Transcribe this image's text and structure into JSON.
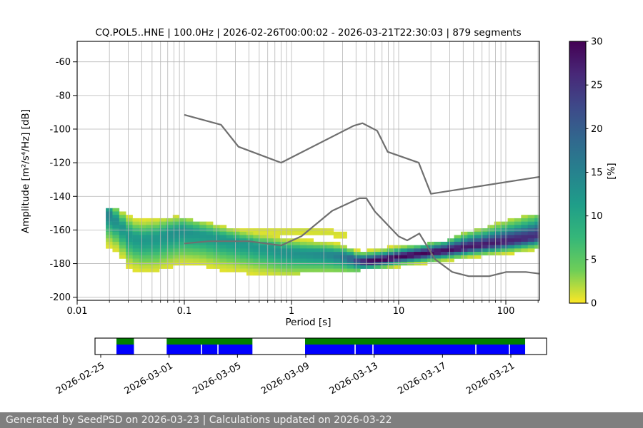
{
  "title": "CQ.POL5..HNE | 100.0Hz | 2026-02-26T00:00:02 - 2026-03-21T22:30:03 | 879 segments",
  "footer": "Generated by SeedPSD on 2026-03-23 | Calculations updated on 2026-03-22",
  "axes": {
    "xlabel": "Period [s]",
    "ylabel": "Amplitude [m²/s⁴/Hz] [dB]",
    "x_tick_values": [
      0.01,
      0.1,
      1,
      10,
      100
    ],
    "x_tick_labels": [
      "0.01",
      "0.1",
      "1",
      "10",
      "100"
    ],
    "y_tick_values": [
      -60,
      -80,
      -100,
      -120,
      -140,
      -160,
      -180,
      -200
    ],
    "xlim": [
      0.01,
      206
    ],
    "ylim": [
      -202,
      -48
    ],
    "grid": true
  },
  "colorbar": {
    "label": "[%]",
    "ticks": [
      0,
      5,
      10,
      15,
      20,
      25,
      30
    ],
    "vmax": 30,
    "viridis_stops": [
      "#440154",
      "#482878",
      "#3e4989",
      "#31688e",
      "#26828e",
      "#1f9e89",
      "#35b779",
      "#6ece58",
      "#fde725"
    ]
  },
  "chart_data": {
    "type": "heatmap",
    "description": "PPSD probability histogram: percentage of 879 PSD segments falling in each (period, amplitude-dB) cell. Columns are log-spaced period bins; each column approximated by mode/spread/peak-percent plus envelope and optional faint upper wisp band.",
    "bins_per_decade": 16,
    "period_start": 0.0185,
    "period_end": 205,
    "db_cell": 2,
    "percent_cutoff": 0.7,
    "columns_spec_fields": "p=period[s], m=mode dB, sd=sigma below mode, su=sigma above mode, pk=peak %, top/bot=dB envelope, wp=wisp peak %, wo=wisp offset dB above mode",
    "columns_spec": [
      {
        "p": 0.018,
        "m": -150.0,
        "sd": 8.0,
        "su": 3.5,
        "pk": 15,
        "top": -146.0,
        "bot": -172.0,
        "wp": 0,
        "wo": 0
      },
      {
        "p": 0.022,
        "m": -155.0,
        "sd": 7.5,
        "su": 4.0,
        "pk": 13,
        "top": -147.0,
        "bot": -177.0,
        "wp": 0,
        "wo": 0
      },
      {
        "p": 0.028,
        "m": -163.0,
        "sd": 8.0,
        "su": 5.0,
        "pk": 12,
        "top": -151.0,
        "bot": -184.0,
        "wp": 0,
        "wo": 0
      },
      {
        "p": 0.035,
        "m": -166.0,
        "sd": 8.0,
        "su": 5.0,
        "pk": 12,
        "top": -153.0,
        "bot": -186.0,
        "wp": 0,
        "wo": 0
      },
      {
        "p": 0.05,
        "m": -165.0,
        "sd": 8.5,
        "su": 5.0,
        "pk": 12,
        "top": -153.0,
        "bot": -186.0,
        "wp": 0,
        "wo": 0
      },
      {
        "p": 0.07,
        "m": -162.0,
        "sd": 8.5,
        "su": 4.5,
        "pk": 13,
        "top": -152.0,
        "bot": -186.0,
        "wp": 0,
        "wo": 0
      },
      {
        "p": 0.09,
        "m": -160.5,
        "sd": 8.5,
        "su": 4.0,
        "pk": 13,
        "top": -152.0,
        "bot": -185.0,
        "wp": 0,
        "wo": 0
      },
      {
        "p": 0.13,
        "m": -162.5,
        "sd": 8.0,
        "su": 4.0,
        "pk": 12,
        "top": -155.0,
        "bot": -185.0,
        "wp": 0,
        "wo": 0
      },
      {
        "p": 0.2,
        "m": -165.0,
        "sd": 8.0,
        "su": 3.5,
        "pk": 12,
        "top": -157.0,
        "bot": -185.0,
        "wp": 0,
        "wo": 0
      },
      {
        "p": 0.3,
        "m": -167.5,
        "sd": 7.5,
        "su": 3.5,
        "pk": 12,
        "top": -159.0,
        "bot": -186.0,
        "wp": 0.9,
        "wo": 9
      },
      {
        "p": 0.5,
        "m": -170.5,
        "sd": 7.0,
        "su": 3.5,
        "pk": 12,
        "top": -160.0,
        "bot": -186.0,
        "wp": 1.1,
        "wo": 10
      },
      {
        "p": 0.8,
        "m": -173.0,
        "sd": 6.5,
        "su": 3.5,
        "pk": 13,
        "top": -159.0,
        "bot": -186.0,
        "wp": 1.2,
        "wo": 12
      },
      {
        "p": 1.2,
        "m": -174.0,
        "sd": 6.0,
        "su": 3.5,
        "pk": 13,
        "top": -158.0,
        "bot": -186.0,
        "wp": 1.3,
        "wo": 14
      },
      {
        "p": 2.0,
        "m": -174.5,
        "sd": 5.5,
        "su": 3.2,
        "pk": 14,
        "top": -159.0,
        "bot": -185.0,
        "wp": 1.2,
        "wo": 13
      },
      {
        "p": 3.0,
        "m": -176.0,
        "sd": 4.5,
        "su": 2.8,
        "pk": 17,
        "top": -161.0,
        "bot": -184.5,
        "wp": 1.0,
        "wo": 13
      },
      {
        "p": 4.0,
        "m": -178.5,
        "sd": 3.0,
        "su": 2.2,
        "pk": 24,
        "top": -164.0,
        "bot": -184.0,
        "wp": 0,
        "wo": 0
      },
      {
        "p": 5.0,
        "m": -178.8,
        "sd": 2.2,
        "su": 2.6,
        "pk": 30,
        "top": -168.0,
        "bot": -183.5,
        "wp": 0,
        "wo": 0
      },
      {
        "p": 7.0,
        "m": -177.5,
        "sd": 2.2,
        "su": 2.6,
        "pk": 30,
        "top": -170.0,
        "bot": -183.0,
        "wp": 0,
        "wo": 0
      },
      {
        "p": 10.0,
        "m": -175.8,
        "sd": 2.2,
        "su": 2.6,
        "pk": 30,
        "top": -170.0,
        "bot": -182.5,
        "wp": 0,
        "wo": 0
      },
      {
        "p": 15.0,
        "m": -174.3,
        "sd": 2.3,
        "su": 2.6,
        "pk": 30,
        "top": -169.0,
        "bot": -181.5,
        "wp": 0,
        "wo": 0
      },
      {
        "p": 25.0,
        "m": -172.5,
        "sd": 2.4,
        "su": 3.0,
        "pk": 29,
        "top": -166.0,
        "bot": -180.0,
        "wp": 0,
        "wo": 0
      },
      {
        "p": 40.0,
        "m": -170.4,
        "sd": 2.5,
        "su": 4.0,
        "pk": 28,
        "top": -161.0,
        "bot": -178.5,
        "wp": 0,
        "wo": 0
      },
      {
        "p": 60.0,
        "m": -168.8,
        "sd": 2.6,
        "su": 4.5,
        "pk": 28,
        "top": -158.0,
        "bot": -177.0,
        "wp": 0,
        "wo": 0
      },
      {
        "p": 100.0,
        "m": -166.8,
        "sd": 2.8,
        "su": 5.5,
        "pk": 27,
        "top": -154.0,
        "bot": -175.0,
        "wp": 0,
        "wo": 0
      },
      {
        "p": 150.0,
        "m": -165.0,
        "sd": 3.0,
        "su": 6.0,
        "pk": 26,
        "top": -151.5,
        "bot": -173.0,
        "wp": 0,
        "wo": 0
      },
      {
        "p": 205.0,
        "m": -163.3,
        "sd": 3.2,
        "su": 6.5,
        "pk": 25,
        "top": -149.5,
        "bot": -171.5,
        "wp": 0,
        "wo": 0
      }
    ],
    "noise_models": {
      "color": "#6f6f6f",
      "nhnm": [
        [
          0.1,
          -91.5
        ],
        [
          0.22,
          -97.4
        ],
        [
          0.32,
          -110.5
        ],
        [
          0.8,
          -120.0
        ],
        [
          3.8,
          -98.0
        ],
        [
          4.6,
          -96.5
        ],
        [
          6.3,
          -101.0
        ],
        [
          7.9,
          -113.5
        ],
        [
          15.4,
          -120.0
        ],
        [
          20.0,
          -138.5
        ],
        [
          206.0,
          -128.4
        ]
      ],
      "nlnm": [
        [
          0.1,
          -168.0
        ],
        [
          0.17,
          -166.7
        ],
        [
          0.4,
          -166.7
        ],
        [
          0.8,
          -169.2
        ],
        [
          1.24,
          -163.7
        ],
        [
          2.4,
          -148.6
        ],
        [
          4.3,
          -141.1
        ],
        [
          5.0,
          -141.1
        ],
        [
          6.0,
          -149.0
        ],
        [
          10.0,
          -163.8
        ],
        [
          12.0,
          -166.2
        ],
        [
          15.6,
          -162.1
        ],
        [
          21.9,
          -177.5
        ],
        [
          31.6,
          -185.0
        ],
        [
          45.0,
          -187.5
        ],
        [
          70.0,
          -187.5
        ],
        [
          101.0,
          -185.0
        ],
        [
          154.0,
          -185.0
        ],
        [
          206.0,
          -186.0
        ]
      ]
    }
  },
  "coverage": {
    "tick_labels": [
      "2026-02-25",
      "2026-03-01",
      "2026-03-05",
      "2026-03-09",
      "2026-03-13",
      "2026-03-17",
      "2026-03-21"
    ],
    "green": "#008000",
    "blue": "#0000ff",
    "segments": [
      [
        0.0475,
        0.0862
      ],
      [
        0.1587,
        0.3486
      ],
      [
        0.4652,
        0.9526
      ]
    ],
    "blue_gaps": [
      0.2358,
      0.2722,
      0.576,
      0.6155,
      0.8434,
      0.9177
    ]
  },
  "colors": {
    "grid": "#b5b5b5",
    "spine": "#000000",
    "text": "#000000",
    "footer_bg": "#7f7f7f",
    "footer_text": "#f2f2f2"
  }
}
